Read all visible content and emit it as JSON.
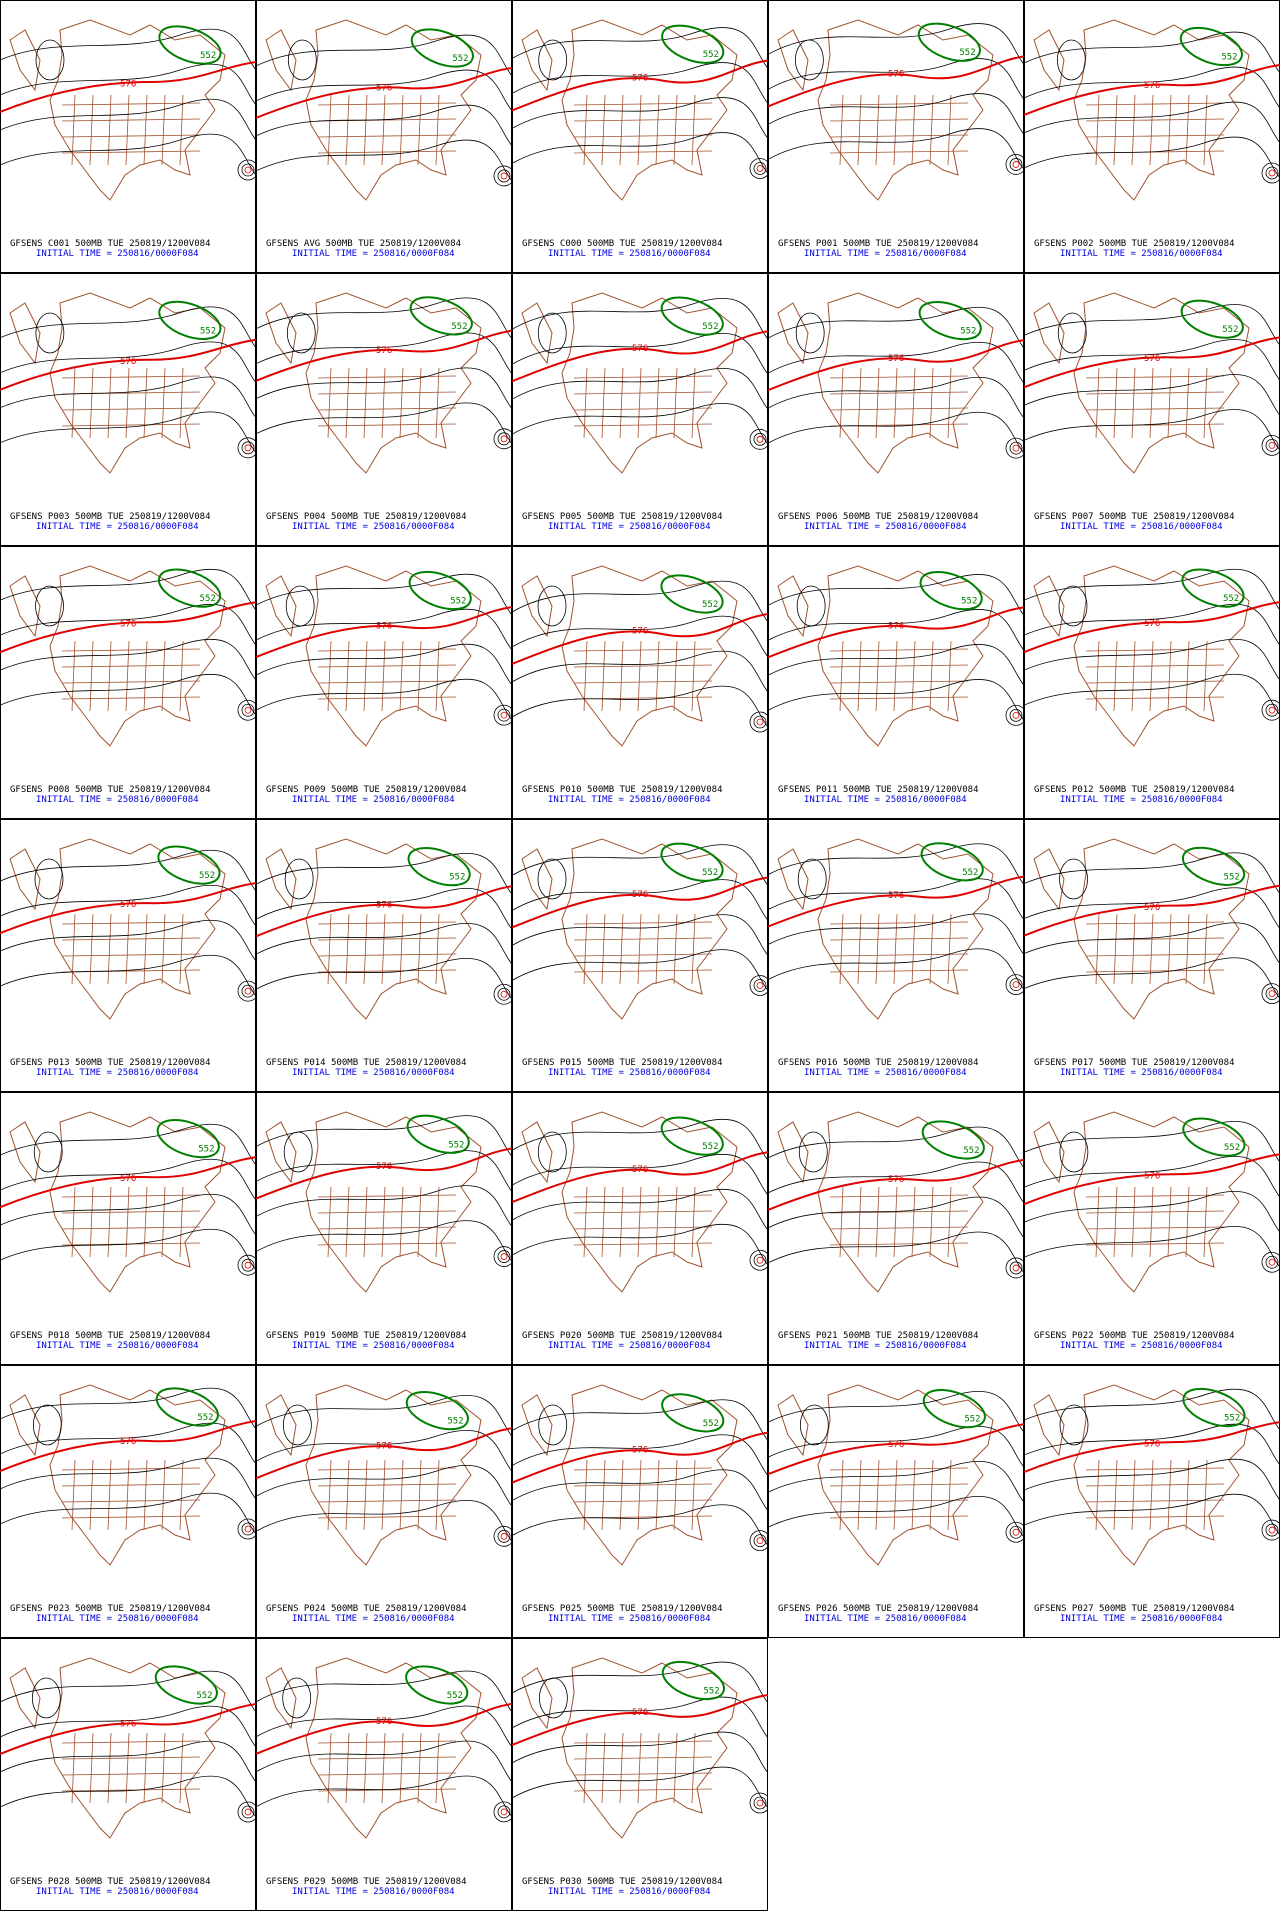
{
  "panels": [
    {
      "title": "GFSENS C001 500MB TUE 250819/1200V084",
      "init": "INITIAL TIME = 250816/0000F084",
      "labels": [
        "552",
        "576"
      ]
    },
    {
      "title": "GFSENS AVG 500MB TUE 250819/1200V084",
      "init": "INITIAL TIME = 250816/0000F084",
      "labels": [
        "552",
        "576"
      ]
    },
    {
      "title": "GFSENS C000 500MB TUE 250819/1200V084",
      "init": "INITIAL TIME = 250816/0000F084",
      "labels": [
        "552",
        "576"
      ]
    },
    {
      "title": "GFSENS P001 500MB TUE 250819/1200V084",
      "init": "INITIAL TIME = 250816/0000F084",
      "labels": [
        "552",
        "576"
      ]
    },
    {
      "title": "GFSENS P002 500MB TUE 250819/1200V084",
      "init": "INITIAL TIME = 250816/0000F084",
      "labels": [
        "552",
        "576"
      ]
    },
    {
      "title": "GFSENS P003 500MB TUE 250819/1200V084",
      "init": "INITIAL TIME = 250816/0000F084",
      "labels": [
        "552",
        "576"
      ]
    },
    {
      "title": "GFSENS P004 500MB TUE 250819/1200V084",
      "init": "INITIAL TIME = 250816/0000F084",
      "labels": [
        "552",
        "576"
      ]
    },
    {
      "title": "GFSENS P005 500MB TUE 250819/1200V084",
      "init": "INITIAL TIME = 250816/0000F084",
      "labels": [
        "552",
        "576"
      ]
    },
    {
      "title": "GFSENS P006 500MB TUE 250819/1200V084",
      "init": "INITIAL TIME = 250816/0000F084",
      "labels": [
        "552",
        "576"
      ]
    },
    {
      "title": "GFSENS P007 500MB TUE 250819/1200V084",
      "init": "INITIAL TIME = 250816/0000F084",
      "labels": [
        "552",
        "576"
      ]
    },
    {
      "title": "GFSENS P008 500MB TUE 250819/1200V084",
      "init": "INITIAL TIME = 250816/0000F084",
      "labels": [
        "552",
        "576"
      ]
    },
    {
      "title": "GFSENS P009 500MB TUE 250819/1200V084",
      "init": "INITIAL TIME = 250816/0000F084",
      "labels": [
        "552",
        "576"
      ]
    },
    {
      "title": "GFSENS P010 500MB TUE 250819/1200V084",
      "init": "INITIAL TIME = 250816/0000F084",
      "labels": [
        "552",
        "576"
      ]
    },
    {
      "title": "GFSENS P011 500MB TUE 250819/1200V084",
      "init": "INITIAL TIME = 250816/0000F084",
      "labels": [
        "552",
        "576"
      ]
    },
    {
      "title": "GFSENS P012 500MB TUE 250819/1200V084",
      "init": "INITIAL TIME = 250816/0000F084",
      "labels": [
        "552",
        "576"
      ]
    },
    {
      "title": "GFSENS P013 500MB TUE 250819/1200V084",
      "init": "INITIAL TIME = 250816/0000F084",
      "labels": [
        "552",
        "576"
      ]
    },
    {
      "title": "GFSENS P014 500MB TUE 250819/1200V084",
      "init": "INITIAL TIME = 250816/0000F084",
      "labels": [
        "552",
        "576"
      ]
    },
    {
      "title": "GFSENS P015 500MB TUE 250819/1200V084",
      "init": "INITIAL TIME = 250816/0000F084",
      "labels": [
        "552",
        "576"
      ]
    },
    {
      "title": "GFSENS P016 500MB TUE 250819/1200V084",
      "init": "INITIAL TIME = 250816/0000F084",
      "labels": [
        "552",
        "576"
      ]
    },
    {
      "title": "GFSENS P017 500MB TUE 250819/1200V084",
      "init": "INITIAL TIME = 250816/0000F084",
      "labels": [
        "552",
        "576"
      ]
    },
    {
      "title": "GFSENS P018 500MB TUE 250819/1200V084",
      "init": "INITIAL TIME = 250816/0000F084",
      "labels": [
        "552",
        "576"
      ]
    },
    {
      "title": "GFSENS P019 500MB TUE 250819/1200V084",
      "init": "INITIAL TIME = 250816/0000F084",
      "labels": [
        "552",
        "576"
      ]
    },
    {
      "title": "GFSENS P020 500MB TUE 250819/1200V084",
      "init": "INITIAL TIME = 250816/0000F084",
      "labels": [
        "552",
        "576"
      ]
    },
    {
      "title": "GFSENS P021 500MB TUE 250819/1200V084",
      "init": "INITIAL TIME = 250816/0000F084",
      "labels": [
        "552",
        "576"
      ]
    },
    {
      "title": "GFSENS P022 500MB TUE 250819/1200V084",
      "init": "INITIAL TIME = 250816/0000F084",
      "labels": [
        "552",
        "576"
      ]
    },
    {
      "title": "GFSENS P023 500MB TUE 250819/1200V084",
      "init": "INITIAL TIME = 250816/0000F084",
      "labels": [
        "552",
        "576"
      ]
    },
    {
      "title": "GFSENS P024 500MB TUE 250819/1200V084",
      "init": "INITIAL TIME = 250816/0000F084",
      "labels": [
        "552",
        "576"
      ]
    },
    {
      "title": "GFSENS P025 500MB TUE 250819/1200V084",
      "init": "INITIAL TIME = 250816/0000F084",
      "labels": [
        "552",
        "576"
      ]
    },
    {
      "title": "GFSENS P026 500MB TUE 250819/1200V084",
      "init": "INITIAL TIME = 250816/0000F084",
      "labels": [
        "552",
        "576"
      ]
    },
    {
      "title": "GFSENS P027 500MB TUE 250819/1200V084",
      "init": "INITIAL TIME = 250816/0000F084",
      "labels": [
        "552",
        "576"
      ]
    },
    {
      "title": "GFSENS P028 500MB TUE 250819/1200V084",
      "init": "INITIAL TIME = 250816/0000F084",
      "labels": [
        "552",
        "576"
      ]
    },
    {
      "title": "GFSENS P029 500MB TUE 250819/1200V084",
      "init": "INITIAL TIME = 250816/0000F084",
      "labels": [
        "552",
        "576"
      ]
    },
    {
      "title": "GFSENS P030 500MB TUE 250819/1200V084",
      "init": "INITIAL TIME = 250816/0000F084",
      "labels": [
        "552",
        "576"
      ]
    }
  ]
}
